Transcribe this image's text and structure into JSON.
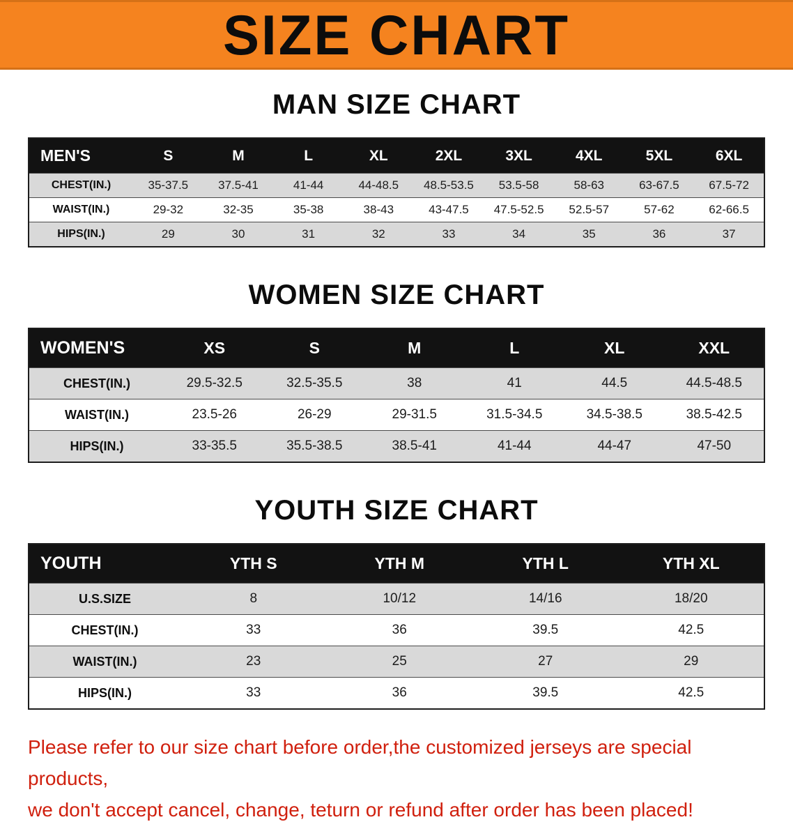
{
  "banner": {
    "title": "SIZE CHART"
  },
  "sections": [
    {
      "id": "men",
      "heading": "MAN SIZE CHART",
      "table": {
        "header": [
          "MEN'S",
          "S",
          "M",
          "L",
          "XL",
          "2XL",
          "3XL",
          "4XL",
          "5XL",
          "6XL"
        ],
        "rows": [
          {
            "label": "CHEST(IN.)",
            "values": [
              "35-37.5",
              "37.5-41",
              "41-44",
              "44-48.5",
              "48.5-53.5",
              "53.5-58",
              "58-63",
              "63-67.5",
              "67.5-72"
            ]
          },
          {
            "label": "WAIST(IN.)",
            "values": [
              "29-32",
              "32-35",
              "35-38",
              "38-43",
              "43-47.5",
              "47.5-52.5",
              "52.5-57",
              "57-62",
              "62-66.5"
            ]
          },
          {
            "label": "HIPS(IN.)",
            "values": [
              "29",
              "30",
              "31",
              "32",
              "33",
              "34",
              "35",
              "36",
              "37"
            ]
          }
        ]
      }
    },
    {
      "id": "women",
      "heading": "WOMEN SIZE CHART",
      "table": {
        "header": [
          "WOMEN'S",
          "XS",
          "S",
          "M",
          "L",
          "XL",
          "XXL"
        ],
        "rows": [
          {
            "label": "CHEST(IN.)",
            "values": [
              "29.5-32.5",
              "32.5-35.5",
              "38",
              "41",
              "44.5",
              "44.5-48.5"
            ]
          },
          {
            "label": "WAIST(IN.)",
            "values": [
              "23.5-26",
              "26-29",
              "29-31.5",
              "31.5-34.5",
              "34.5-38.5",
              "38.5-42.5"
            ]
          },
          {
            "label": "HIPS(IN.)",
            "values": [
              "33-35.5",
              "35.5-38.5",
              "38.5-41",
              "41-44",
              "44-47",
              "47-50"
            ]
          }
        ]
      }
    },
    {
      "id": "youth",
      "heading": "YOUTH SIZE CHART",
      "table": {
        "header": [
          "YOUTH",
          "YTH S",
          "YTH M",
          "YTH L",
          "YTH XL"
        ],
        "rows": [
          {
            "label": "U.S.SIZE",
            "values": [
              "8",
              "10/12",
              "14/16",
              "18/20"
            ]
          },
          {
            "label": "CHEST(IN.)",
            "values": [
              "33",
              "36",
              "39.5",
              "42.5"
            ]
          },
          {
            "label": "WAIST(IN.)",
            "values": [
              "23",
              "25",
              "27",
              "29"
            ]
          },
          {
            "label": "HIPS(IN.)",
            "values": [
              "33",
              "36",
              "39.5",
              "42.5"
            ]
          }
        ]
      }
    }
  ],
  "disclaimer": {
    "line1": "Please refer to our size chart before order,the customized jerseys are special products,",
    "line2": "we don't accept cancel, change, teturn or refund after order has been placed!"
  },
  "colors": {
    "banner_orange": "#f5831f",
    "header_black": "#121212",
    "row_gray": "#d9d9d9",
    "disclaimer_red": "#d0200e"
  }
}
